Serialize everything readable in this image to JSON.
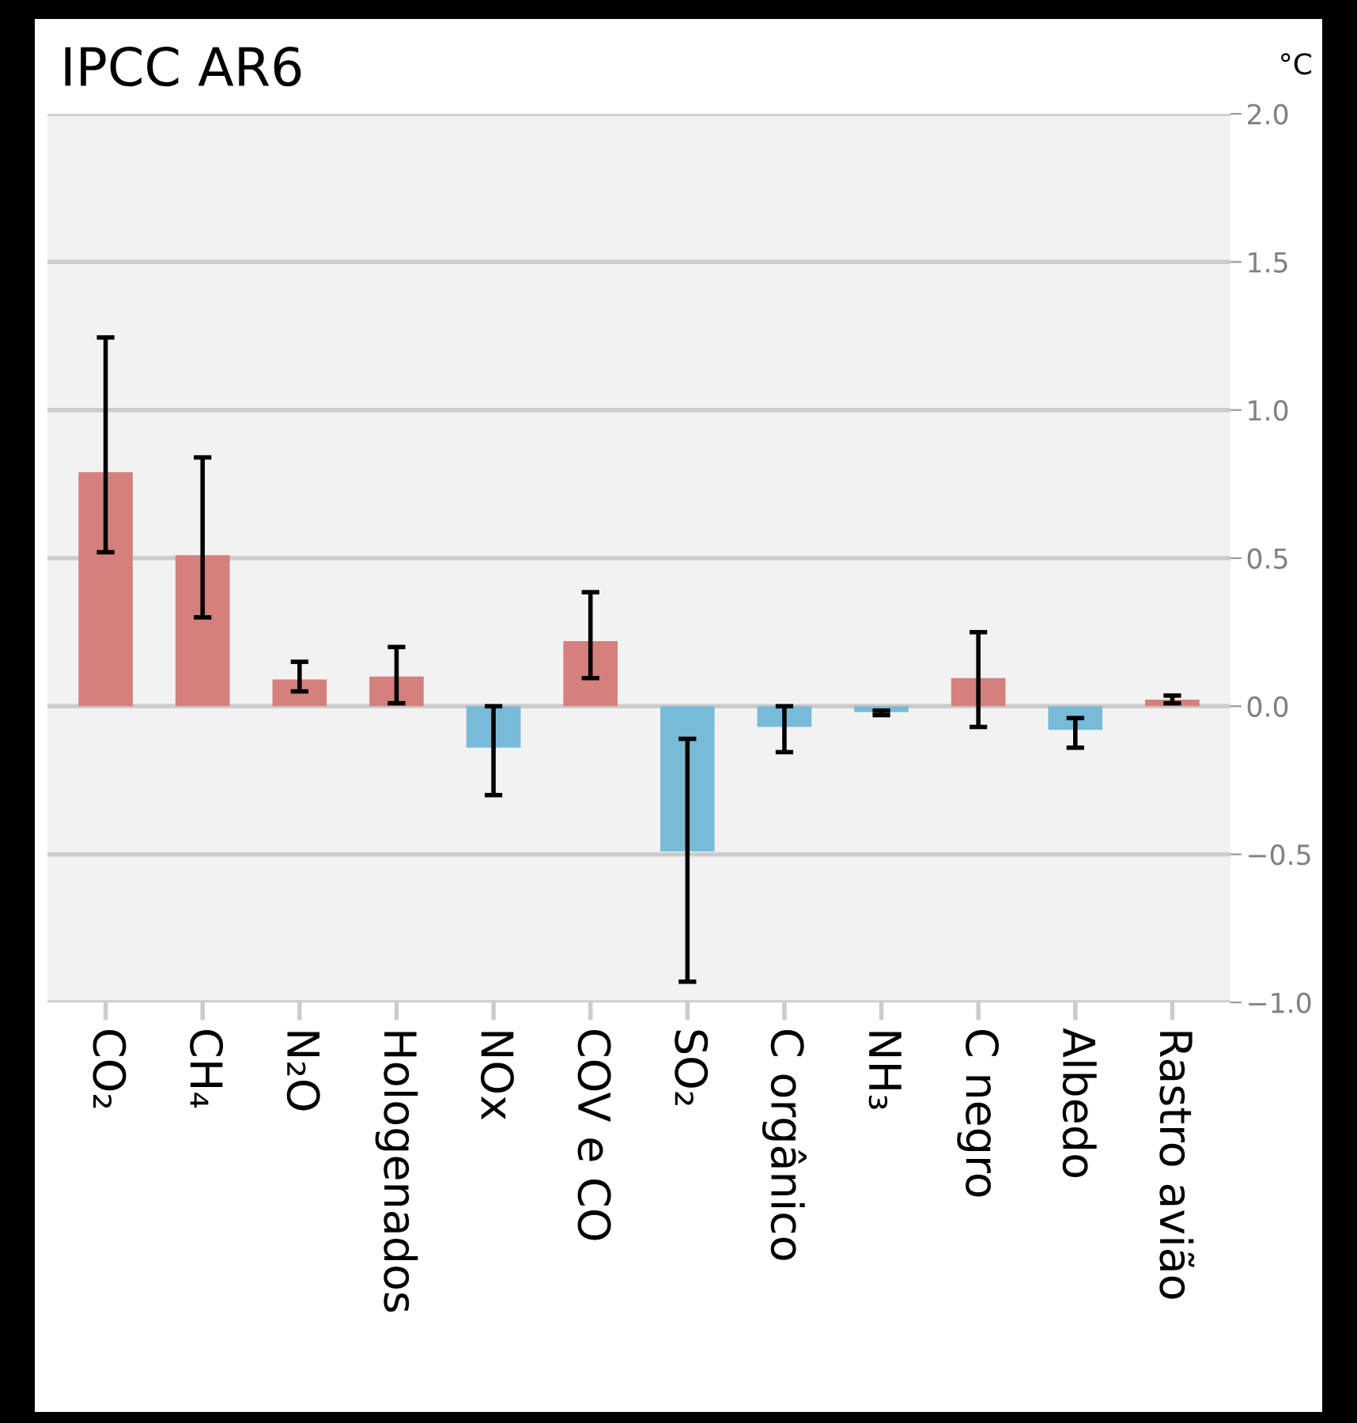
{
  "chart_data": {
    "type": "bar",
    "title": "IPCC AR6",
    "ylabel": "°C",
    "categories": [
      "CO₂",
      "CH₄",
      "N₂O",
      "Hologenados",
      "NOx",
      "COV e CO",
      "SO₂",
      "C orgânico",
      "NH₃",
      "C negro",
      "Albedo",
      "Rastro avião"
    ],
    "values": [
      0.79,
      0.51,
      0.09,
      0.1,
      -0.14,
      0.22,
      -0.49,
      -0.07,
      -0.02,
      0.095,
      -0.08,
      0.022
    ],
    "colors": [
      "#d4807c",
      "#d4807c",
      "#d4807c",
      "#d4807c",
      "#78bbd8",
      "#d4807c",
      "#78bbd8",
      "#78bbd8",
      "#78bbd8",
      "#d4807c",
      "#78bbd8",
      "#d4807c"
    ],
    "errors": [
      [
        0.52,
        1.245
      ],
      [
        0.3,
        0.84
      ],
      [
        0.05,
        0.15
      ],
      [
        0.01,
        0.2
      ],
      [
        -0.3,
        0.0
      ],
      [
        0.095,
        0.385
      ],
      [
        -0.93,
        -0.11
      ],
      [
        -0.155,
        0.0
      ],
      [
        -0.03,
        -0.015
      ],
      [
        -0.07,
        0.25
      ],
      [
        -0.14,
        -0.04
      ],
      [
        0.01,
        0.036
      ]
    ],
    "ylim": [
      -1.0,
      2.0
    ],
    "yticks": [
      {
        "value": -1.0,
        "label": "−1.0"
      },
      {
        "value": -0.5,
        "label": "−0.5"
      },
      {
        "value": 0.0,
        "label": "0.0"
      },
      {
        "value": 0.5,
        "label": "0.5"
      },
      {
        "value": 1.0,
        "label": "1.0"
      },
      {
        "value": 1.5,
        "label": "1.5"
      },
      {
        "value": 2.0,
        "label": "2.0"
      }
    ],
    "grid": "y"
  }
}
